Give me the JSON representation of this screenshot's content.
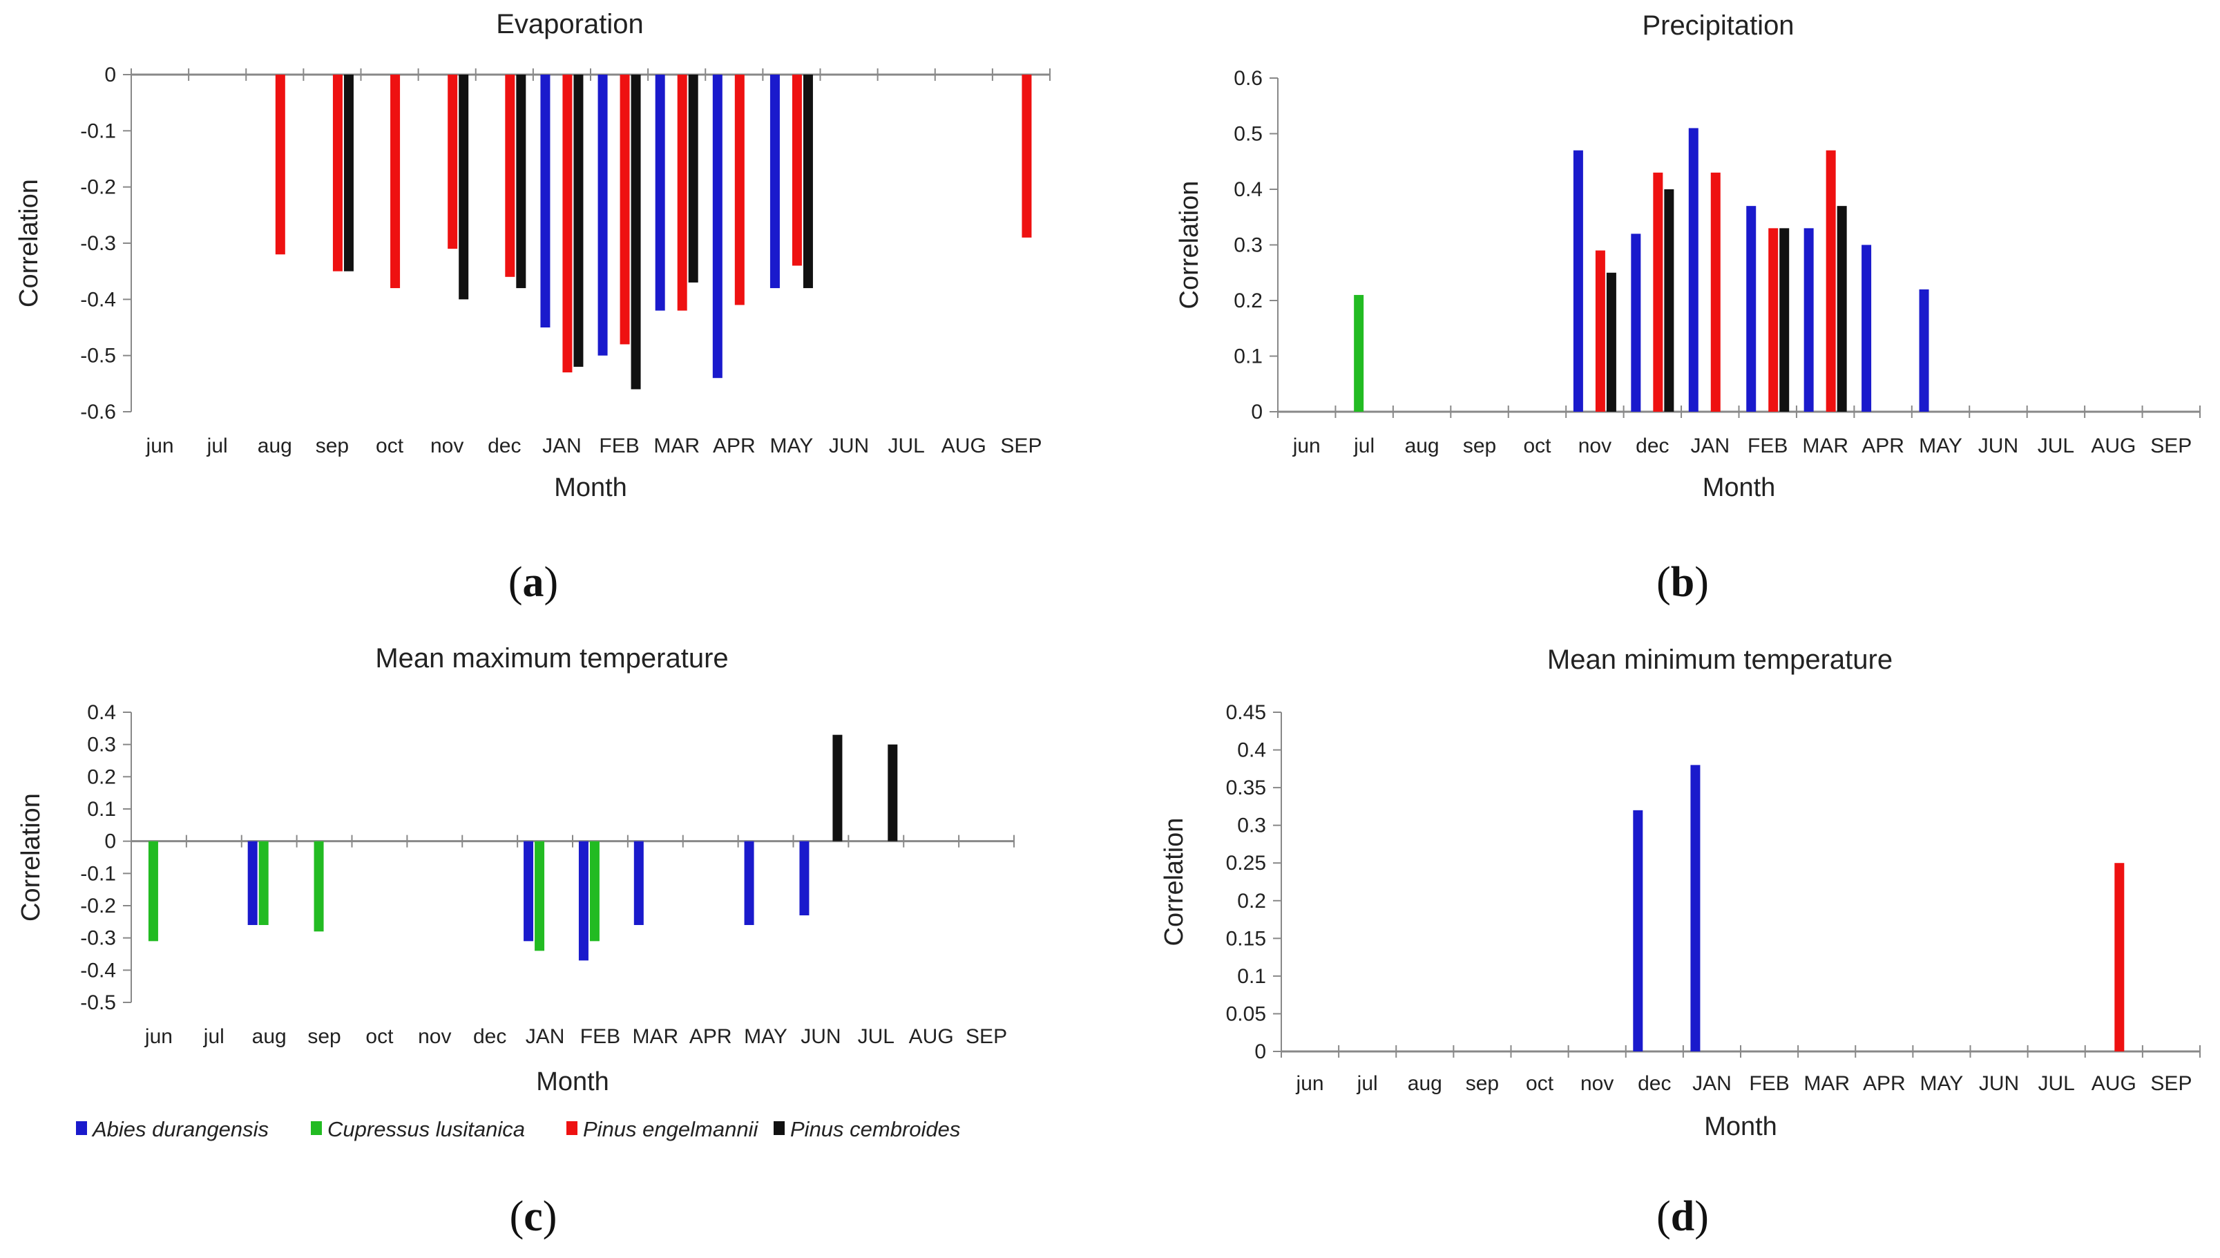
{
  "legend": [
    {
      "name": "Abies durangensis",
      "color": "#1a1acc"
    },
    {
      "name": "Cupressus lusitanica",
      "color": "#22bb22"
    },
    {
      "name": "Pinus engelmannii",
      "color": "#ee1111"
    },
    {
      "name": "Pinus cembroides",
      "color": "#111111"
    }
  ],
  "chart_data": [
    {
      "type": "bar",
      "panel": "a",
      "title": "Evaporation",
      "xlabel": "Month",
      "ylabel": "Correlation",
      "ylim": [
        -0.6,
        0
      ],
      "yticks": [
        0,
        -0.1,
        -0.2,
        -0.3,
        -0.4,
        -0.5,
        -0.6
      ],
      "ytick_labels": [
        "0",
        "-0.1",
        "-0.2",
        "-0.3",
        "-0.4",
        "-0.5",
        "-0.6"
      ],
      "categories": [
        "jun",
        "jul",
        "aug",
        "sep",
        "oct",
        "nov",
        "dec",
        "JAN",
        "FEB",
        "MAR",
        "APR",
        "MAY",
        "JUN",
        "JUL",
        "AUG",
        "SEP"
      ],
      "series": [
        {
          "name": "Abies durangensis",
          "values": [
            null,
            null,
            null,
            null,
            null,
            null,
            null,
            -0.45,
            -0.5,
            -0.42,
            -0.54,
            -0.38,
            null,
            null,
            null,
            null
          ]
        },
        {
          "name": "Cupressus lusitanica",
          "values": [
            null,
            null,
            null,
            null,
            null,
            null,
            null,
            null,
            null,
            null,
            null,
            null,
            null,
            null,
            null,
            null
          ]
        },
        {
          "name": "Pinus engelmannii",
          "values": [
            null,
            null,
            -0.32,
            -0.35,
            -0.38,
            -0.31,
            -0.36,
            -0.53,
            -0.48,
            -0.42,
            -0.41,
            -0.34,
            null,
            null,
            null,
            -0.29
          ]
        },
        {
          "name": "Pinus cembroides",
          "values": [
            null,
            null,
            null,
            -0.35,
            null,
            -0.4,
            -0.38,
            -0.52,
            -0.56,
            -0.37,
            null,
            -0.38,
            null,
            null,
            null,
            null
          ]
        }
      ]
    },
    {
      "type": "bar",
      "panel": "b",
      "title": "Precipitation",
      "xlabel": "Month",
      "ylabel": "Correlation",
      "ylim": [
        0,
        0.6
      ],
      "yticks": [
        0,
        0.1,
        0.2,
        0.3,
        0.4,
        0.5,
        0.6
      ],
      "ytick_labels": [
        "0",
        "0.1",
        "0.2",
        "0.3",
        "0.4",
        "0.5",
        "0.6"
      ],
      "categories": [
        "jun",
        "jul",
        "aug",
        "sep",
        "oct",
        "nov",
        "dec",
        "JAN",
        "FEB",
        "MAR",
        "APR",
        "MAY",
        "JUN",
        "JUL",
        "AUG",
        "SEP"
      ],
      "series": [
        {
          "name": "Abies durangensis",
          "values": [
            null,
            null,
            null,
            null,
            null,
            0.47,
            0.32,
            0.51,
            0.37,
            0.33,
            0.3,
            0.22,
            null,
            null,
            null,
            null
          ]
        },
        {
          "name": "Cupressus lusitanica",
          "values": [
            null,
            0.21,
            null,
            null,
            null,
            null,
            null,
            null,
            null,
            null,
            null,
            null,
            null,
            null,
            null,
            null
          ]
        },
        {
          "name": "Pinus engelmannii",
          "values": [
            null,
            null,
            null,
            null,
            null,
            0.29,
            0.43,
            0.43,
            0.33,
            0.47,
            null,
            null,
            null,
            null,
            null,
            null
          ]
        },
        {
          "name": "Pinus cembroides",
          "values": [
            null,
            null,
            null,
            null,
            null,
            0.25,
            0.4,
            null,
            0.33,
            0.37,
            null,
            null,
            null,
            null,
            null,
            null
          ]
        }
      ]
    },
    {
      "type": "bar",
      "panel": "c",
      "title": "Mean maximum temperature",
      "xlabel": "Month",
      "ylabel": "Correlation",
      "ylim": [
        -0.5,
        0.4
      ],
      "yticks": [
        0.4,
        0.3,
        0.2,
        0.1,
        0,
        -0.1,
        -0.2,
        -0.3,
        -0.4,
        -0.5
      ],
      "ytick_labels": [
        "0.4",
        "0.3",
        "0.2",
        "0.1",
        "0",
        "-0.1",
        "-0.2",
        "-0.3",
        "-0.4",
        "-0.5"
      ],
      "categories": [
        "jun",
        "jul",
        "aug",
        "sep",
        "oct",
        "nov",
        "dec",
        "JAN",
        "FEB",
        "MAR",
        "APR",
        "MAY",
        "JUN",
        "JUL",
        "AUG",
        "SEP"
      ],
      "series": [
        {
          "name": "Abies durangensis",
          "values": [
            null,
            null,
            -0.26,
            null,
            null,
            null,
            null,
            -0.31,
            -0.37,
            -0.26,
            null,
            -0.26,
            -0.23,
            null,
            null,
            null
          ]
        },
        {
          "name": "Cupressus lusitanica",
          "values": [
            -0.31,
            null,
            -0.26,
            -0.28,
            null,
            null,
            null,
            -0.34,
            -0.31,
            null,
            null,
            null,
            null,
            null,
            null,
            null
          ]
        },
        {
          "name": "Pinus engelmannii",
          "values": [
            null,
            null,
            null,
            null,
            null,
            null,
            null,
            null,
            null,
            null,
            null,
            null,
            null,
            null,
            null,
            null
          ]
        },
        {
          "name": "Pinus cembroides",
          "values": [
            null,
            null,
            null,
            null,
            null,
            null,
            null,
            null,
            null,
            null,
            null,
            null,
            0.33,
            0.3,
            null,
            null
          ]
        }
      ]
    },
    {
      "type": "bar",
      "panel": "d",
      "title": "Mean minimum temperature",
      "xlabel": "Month",
      "ylabel": "Correlation",
      "ylim": [
        0,
        0.45
      ],
      "yticks": [
        0,
        0.05,
        0.1,
        0.15,
        0.2,
        0.25,
        0.3,
        0.35,
        0.4,
        0.45
      ],
      "ytick_labels": [
        "0",
        "0.05",
        "0.1",
        "0.15",
        "0.2",
        "0.25",
        "0.3",
        "0.35",
        "0.4",
        "0.45"
      ],
      "categories": [
        "jun",
        "jul",
        "aug",
        "sep",
        "oct",
        "nov",
        "dec",
        "JAN",
        "FEB",
        "MAR",
        "APR",
        "MAY",
        "JUN",
        "JUL",
        "AUG",
        "SEP"
      ],
      "series": [
        {
          "name": "Abies durangensis",
          "values": [
            null,
            null,
            null,
            null,
            null,
            null,
            0.32,
            0.38,
            null,
            null,
            null,
            null,
            null,
            null,
            null,
            null
          ]
        },
        {
          "name": "Cupressus lusitanica",
          "values": [
            null,
            null,
            null,
            null,
            null,
            null,
            null,
            null,
            null,
            null,
            null,
            null,
            null,
            null,
            null,
            null
          ]
        },
        {
          "name": "Pinus engelmannii",
          "values": [
            null,
            null,
            null,
            null,
            null,
            null,
            null,
            null,
            null,
            null,
            null,
            null,
            null,
            null,
            0.25,
            null
          ]
        },
        {
          "name": "Pinus cembroides",
          "values": [
            null,
            null,
            null,
            null,
            null,
            null,
            null,
            null,
            null,
            null,
            null,
            null,
            null,
            null,
            null,
            null
          ]
        }
      ]
    }
  ]
}
